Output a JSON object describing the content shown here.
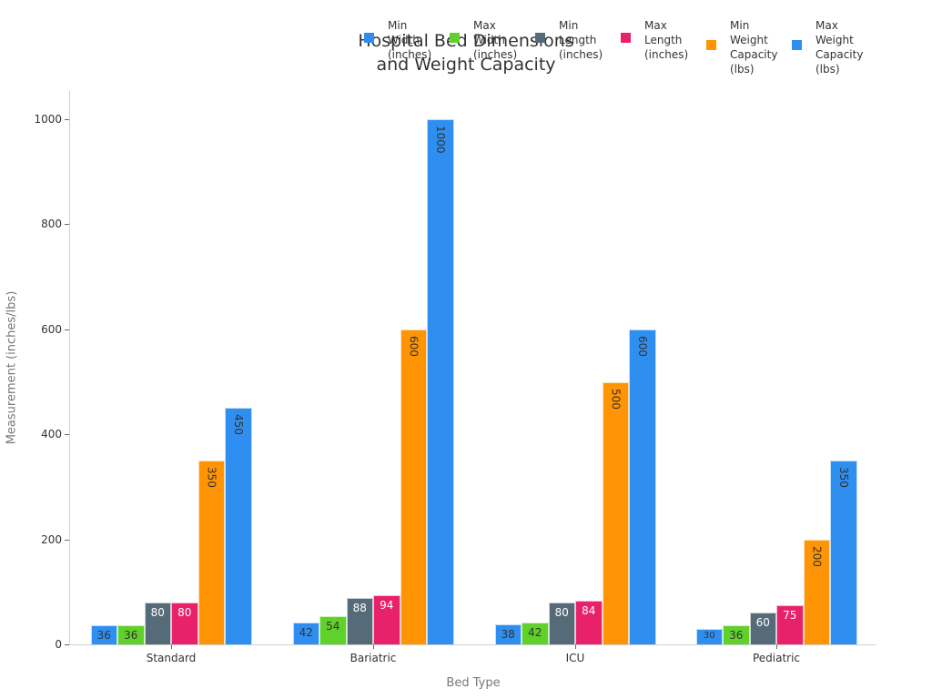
{
  "chart_data": {
    "type": "bar",
    "title": "Hospital Bed Dimensions and Weight Capacity",
    "title_lines": [
      "Hospital Bed Dimensions",
      "and Weight Capacity"
    ],
    "xlabel": "Bed Type",
    "ylabel": "Measurement (inches/lbs)",
    "ylim": [
      0,
      1050
    ],
    "yticks": [
      0,
      200,
      400,
      600,
      800,
      1000
    ],
    "grid": false,
    "legend_position": "top-right",
    "categories": [
      "Standard",
      "Bariatric",
      "ICU",
      "Pediatric"
    ],
    "series": [
      {
        "name": "Min Width (inches)",
        "legend_lines": "Min\nWidth\n(inches)",
        "color": "#2f8ff0",
        "label_color": "#333333",
        "values": [
          36,
          42,
          38,
          30
        ]
      },
      {
        "name": "Max Width (inches)",
        "legend_lines": "Max\nWidth\n(inches)",
        "color": "#5fd12a",
        "label_color": "#333333",
        "values": [
          36,
          54,
          42,
          36
        ]
      },
      {
        "name": "Min Length (inches)",
        "legend_lines": "Min\nLength\n(inches)",
        "color": "#566b78",
        "label_color": "#ffffff",
        "values": [
          80,
          88,
          80,
          60
        ]
      },
      {
        "name": "Max Length (inches)",
        "legend_lines": "Max\nLength\n(inches)",
        "color": "#e8226a",
        "label_color": "#ffffff",
        "values": [
          80,
          94,
          84,
          75
        ]
      },
      {
        "name": "Min Weight Capacity (lbs)",
        "legend_lines": "Min\nWeight\nCapacity\n(lbs)",
        "color": "#ff9505",
        "label_color": "#333333",
        "values": [
          350,
          600,
          500,
          200
        ]
      },
      {
        "name": "Max Weight Capacity (lbs)",
        "legend_lines": "Max\nWeight\nCapacity\n(lbs)",
        "color": "#2f8ff0",
        "label_color": "#333333",
        "values": [
          450,
          1000,
          600,
          350
        ]
      }
    ]
  }
}
